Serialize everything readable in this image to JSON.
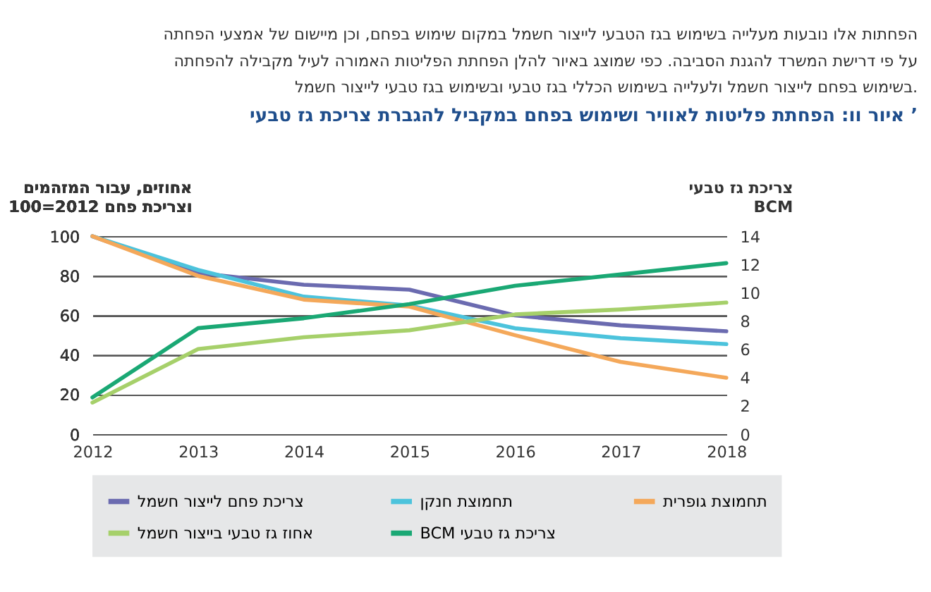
{
  "chart_data": {
    "type": "line",
    "title": "איור וו: הפחתת פליטות לאוויר ושימוש בפחם במקביל להגברת צריכת גז טבעי ’",
    "annotations": [
      "הפחתות אלו נובעות מעלייה בשימוש בגז הטבעי לייצור חשמל במקום שימוש בפחם, וכן מיישום של אמצעי הפחתה",
      "על פי דרישת המשרד להגנת הסביבה. כפי שמוצג באיור להלן הפחתת הפליטות האמורה לעיל מקבילה להפחתה",
      "בשימוש בפחם לייצור חשמל ולעלייה בשימוש הכללי בגז טבעי ובשימוש בגז טבעי לייצור חשמל."
    ],
    "ylabel": "אחוזים, עבור המזהמים\nוצריכת פחם 2012=100",
    "y2label": "צריכת גז טבעי\nBCM",
    "x": [
      2012,
      2013,
      2014,
      2015,
      2016,
      2017,
      2018
    ],
    "xlim": [
      2012,
      2018
    ],
    "xticks": [
      2012,
      2013,
      2014,
      2015,
      2016,
      2017,
      2018
    ],
    "ylim": [
      0,
      100
    ],
    "yticks": [
      0,
      20,
      40,
      60,
      80,
      100
    ],
    "y2lim": [
      0,
      14
    ],
    "y2ticks": [
      0,
      2,
      4,
      6,
      8,
      10,
      12,
      14
    ],
    "grid": "y",
    "legend": "bottom",
    "line_style": "solid",
    "series": [
      {
        "name": "צריכת פחם לייצור חשמל",
        "color": "#6b6bb0",
        "values": [
          100,
          81.5,
          75.5,
          73,
          60,
          55,
          52
        ]
      },
      {
        "name": "תחמוצת חנקן",
        "color": "#4cc3dc",
        "values": [
          100,
          83,
          69.5,
          65,
          53.5,
          48.5,
          45.5
        ]
      },
      {
        "name": "תחמוצת גופרית",
        "color": "#f4a85a",
        "values": [
          100,
          80,
          68,
          64.5,
          50,
          36.5,
          28.5
        ]
      },
      {
        "name": "אחוז גז טבעי בייצור חשמל",
        "color": "#a6d06a",
        "values": [
          16,
          43,
          49,
          52.5,
          60.5,
          63,
          66.5
        ]
      },
      {
        "name": "BCM צריכת גז טבעי",
        "color": "#1aa874",
        "axis": "y2",
        "values": [
          2.6,
          7.5,
          8.2,
          9.2,
          10.5,
          11.3,
          12.1
        ]
      }
    ]
  }
}
